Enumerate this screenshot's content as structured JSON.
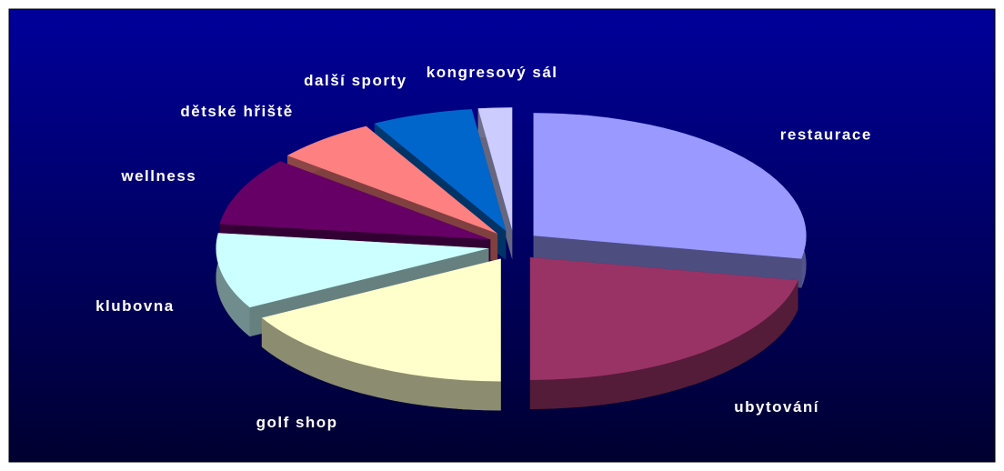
{
  "chart_data": {
    "type": "pie3d",
    "categories": [
      "restaurace",
      "ubytování",
      "golf shop",
      "klubovna",
      "wellness",
      "dětské hřiště",
      "další sporty",
      "kongresový sál"
    ],
    "values": [
      28,
      22,
      17,
      10,
      9,
      6,
      6,
      2
    ],
    "colors": [
      "#9999ff",
      "#993366",
      "#ffffcc",
      "#ccffff",
      "#660066",
      "#ff8080",
      "#0066cc",
      "#ccccff"
    ]
  }
}
